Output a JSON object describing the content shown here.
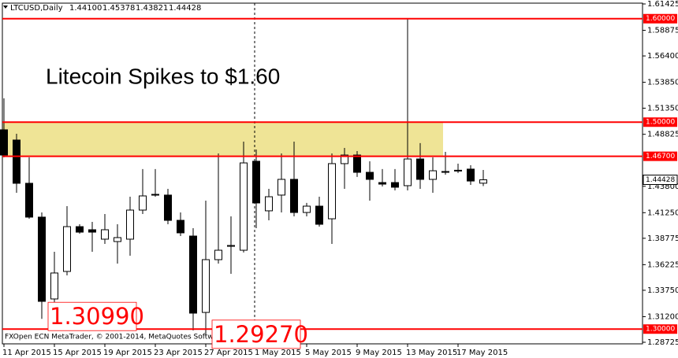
{
  "chart_data": {
    "type": "candlestick",
    "header": {
      "symbol": "LTCUSD,Daily",
      "open": "1.44100",
      "high": "1.45378",
      "low": "1.43821",
      "close": "1.44428"
    },
    "title": "Litecoin Spikes to $1.60",
    "footer": "FXOpen ECN MetaTrader, © 2001-2014, MetaQuotes Software Corp.",
    "categories": [
      "11 Apr 2015",
      null,
      null,
      null,
      "15 Apr 2015",
      null,
      null,
      null,
      "19 Apr 2015",
      null,
      null,
      null,
      "23 Apr 2015",
      null,
      null,
      null,
      "27 Apr 2015",
      null,
      null,
      null,
      "1 May 2015",
      null,
      null,
      null,
      "5 May 2015",
      null,
      null,
      null,
      "9 May 2015",
      null,
      null,
      null,
      "13 May 2015",
      null,
      null,
      null,
      "17 May 2015",
      null,
      null
    ],
    "open": [
      1.4926,
      1.4827,
      1.4409,
      1.4082,
      1.3291,
      1.3557,
      1.399,
      1.396,
      1.3869,
      1.3846,
      1.3869,
      1.415,
      1.4295,
      1.4295,
      1.4051,
      1.3899,
      1.3161,
      1.3671,
      1.38,
      1.3762,
      1.4622,
      1.4143,
      1.4295,
      1.4447,
      1.4127,
      1.4188,
      1.4066,
      1.4599,
      1.4682,
      1.4515,
      1.4416,
      1.4416,
      1.4386,
      1.4644,
      1.4447,
      1.4523,
      1.453,
      1.4546,
      1.441
    ],
    "high": [
      1.523,
      1.4888,
      1.466,
      1.4127,
      1.3747,
      1.4188,
      1.4013,
      1.4036,
      1.4112,
      1.4013,
      1.4279,
      1.4546,
      1.4546,
      1.4355,
      1.4127,
      1.3975,
      1.4241,
      1.4698,
      1.4089,
      1.4812,
      1.4736,
      1.4355,
      1.4698,
      1.4812,
      1.4219,
      1.4279,
      1.4698,
      1.4751,
      1.472,
      1.4622,
      1.4546,
      1.4546,
      1.6,
      1.4797,
      1.466,
      1.4713,
      1.4599,
      1.4584,
      1.45378
    ],
    "low": [
      1.466,
      1.4317,
      1.4066,
      1.3099,
      1.3177,
      1.3519,
      1.3922,
      1.3747,
      1.3823,
      1.3633,
      1.3709,
      1.4112,
      1.4279,
      1.4013,
      1.3899,
      1.2987,
      1.2927,
      1.3633,
      1.3534,
      1.374,
      1.3975,
      1.4051,
      1.4127,
      1.4089,
      1.4089,
      1.399,
      1.3823,
      1.4355,
      1.447,
      1.4241,
      1.4378,
      1.434,
      1.434,
      1.4355,
      1.4317,
      1.4492,
      1.4508,
      1.4393,
      1.43821
    ],
    "close": [
      1.4682,
      1.4409,
      1.4082,
      1.3268,
      1.3542,
      1.399,
      1.3937,
      1.3937,
      1.396,
      1.3884,
      1.415,
      1.4287,
      1.4302,
      1.4051,
      1.393,
      1.3154,
      1.3671,
      1.3762,
      1.3808,
      1.4606,
      1.4219,
      1.4279,
      1.4447,
      1.4127,
      1.4188,
      1.4013,
      1.4599,
      1.4682,
      1.4515,
      1.4447,
      1.4401,
      1.4371,
      1.4644,
      1.4447,
      1.453,
      1.4515,
      1.4535,
      1.4431,
      1.44428
    ],
    "low_labels": [
      null,
      null,
      null,
      "1.30990",
      null,
      null,
      null,
      null,
      null,
      null,
      null,
      null,
      null,
      null,
      null,
      null,
      "1.29270",
      null,
      null,
      null,
      null,
      null,
      null,
      null,
      null,
      null,
      null,
      null,
      null,
      null,
      null,
      null,
      null,
      null,
      null,
      null,
      null,
      null,
      null
    ],
    "bull_color": "#ffffff",
    "bear_color": "#000000",
    "ylim": [
      1.28725,
      1.61425
    ],
    "yticks": [
      1.61425,
      1.58875,
      {
        "value": 1.564,
        "label": "1.56400"
      },
      {
        "value": 1.5385,
        "label": "1.53850"
      },
      {
        "value": 1.5135,
        "label": "1.51350"
      },
      1.48825,
      {
        "value": 1.438,
        "label": "1.43800"
      },
      {
        "value": 1.4125,
        "label": "1.41250"
      },
      1.38775,
      1.36225,
      {
        "value": 1.3375,
        "label": "1.33750"
      },
      {
        "value": 1.312,
        "label": "1.31200"
      },
      1.28725
    ],
    "levels": [
      {
        "value": 1.6,
        "label": "1.60000"
      },
      {
        "value": 1.5,
        "label": "1.50000"
      },
      {
        "value": 1.467,
        "label": "1.46700"
      },
      {
        "value": 1.3,
        "label": "1.30000"
      }
    ],
    "level_color": "#ff0000",
    "zone": [
      1.467,
      1.5
    ],
    "zone_color": "#efe496",
    "current_price": {
      "value": 1.44428,
      "label": "1.44428"
    }
  }
}
